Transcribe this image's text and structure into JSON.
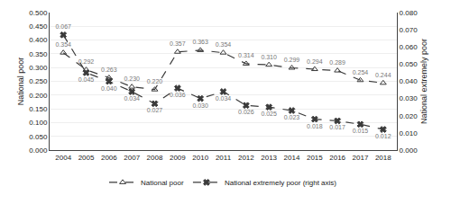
{
  "chart_data": {
    "type": "line",
    "x": [
      2004,
      2005,
      2006,
      2007,
      2008,
      2009,
      2010,
      2011,
      2012,
      2013,
      2014,
      2015,
      2016,
      2017,
      2018
    ],
    "xlim": [
      2003.4,
      2018.6
    ],
    "xticks": [
      2004,
      2005,
      2006,
      2007,
      2008,
      2009,
      2010,
      2011,
      2012,
      2013,
      2014,
      2015,
      2016,
      2017,
      2018
    ],
    "ylim": [
      0.0,
      0.5
    ],
    "yticks": [
      {
        "value": 0.0,
        "label": "0.000"
      },
      {
        "value": 0.05,
        "label": "0.050"
      },
      {
        "value": 0.1,
        "label": "0.100"
      },
      {
        "value": 0.15,
        "label": "0.150"
      },
      {
        "value": 0.2,
        "label": "0.200"
      },
      {
        "value": 0.25,
        "label": "0.250"
      },
      {
        "value": 0.3,
        "label": "0.300"
      },
      {
        "value": 0.35,
        "label": "0.350"
      },
      {
        "value": 0.4,
        "label": "0.400"
      },
      {
        "value": 0.45,
        "label": "0.450"
      },
      {
        "value": 0.5,
        "label": "0.500"
      }
    ],
    "y2lim": [
      0.0,
      0.08
    ],
    "y2ticks": [
      {
        "value": 0.0,
        "label": "0.000"
      },
      {
        "value": 0.01,
        "label": "0.010"
      },
      {
        "value": 0.02,
        "label": "0.020"
      },
      {
        "value": 0.03,
        "label": "0.030"
      },
      {
        "value": 0.04,
        "label": "0.040"
      },
      {
        "value": 0.05,
        "label": "0.050"
      },
      {
        "value": 0.06,
        "label": "0.060"
      },
      {
        "value": 0.07,
        "label": "0.070"
      },
      {
        "value": 0.08,
        "label": "0.080"
      }
    ],
    "ylabel": "National poor",
    "y2label": "National extremely poor",
    "grid": true,
    "legend": "bottom",
    "data_labels": true,
    "series": [
      {
        "name": "National poor",
        "color": "#3a3a3a",
        "marker": "triangle-up-open",
        "line_style": "dash",
        "values": [
          0.354,
          0.292,
          0.263,
          0.23,
          0.22,
          0.357,
          0.363,
          0.354,
          0.314,
          0.31,
          0.299,
          0.294,
          0.289,
          0.254,
          0.244
        ],
        "value_labels": [
          "0.354",
          "0.292",
          "0.263",
          "0.230",
          "0.220",
          "0.357",
          "0.363",
          "0.354",
          "0.314",
          "0.310",
          "0.299",
          "0.294",
          "0.289",
          "0.254",
          "0.244"
        ]
      },
      {
        "name": "National extremely poor (right axis)",
        "axis": "y2",
        "color": "#3a3a3a",
        "marker": "x",
        "line_style": "dash",
        "values": [
          0.067,
          0.045,
          0.04,
          0.034,
          0.027,
          0.036,
          0.03,
          0.034,
          0.026,
          0.025,
          0.023,
          0.018,
          0.017,
          0.015,
          0.012
        ],
        "value_labels": [
          "0.067",
          "0.045",
          "0.040",
          "0.034",
          "0.027",
          "0.036",
          "0.030",
          "0.034",
          "0.026",
          "0.025",
          "0.023",
          "0.018",
          "0.017",
          "0.015",
          "0.012"
        ]
      }
    ]
  }
}
